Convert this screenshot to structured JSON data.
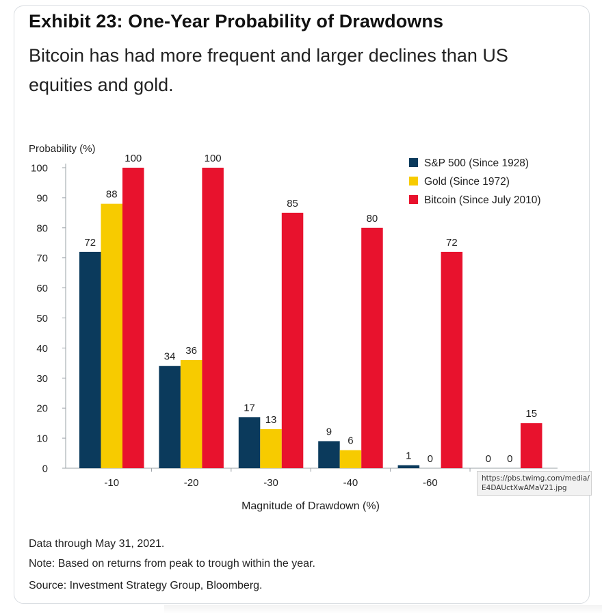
{
  "header": {
    "title": "Exhibit 23: One-Year Probability of Drawdowns",
    "subtitle": "Bitcoin has had more frequent and larger declines than US equities and gold."
  },
  "chart_data": {
    "type": "bar",
    "ylabel": "Probability (%)",
    "xlabel": "Magnitude of Drawdown (%)",
    "ylim": [
      0,
      100
    ],
    "yticks": [
      0,
      10,
      20,
      30,
      40,
      50,
      60,
      70,
      80,
      90,
      100
    ],
    "categories": [
      "-10",
      "-20",
      "-30",
      "-40",
      "-60",
      ""
    ],
    "series": [
      {
        "name": "S&P 500 (Since 1928)",
        "color": "#0b3a5c",
        "values": [
          72,
          34,
          17,
          9,
          1,
          0
        ]
      },
      {
        "name": "Gold (Since 1972)",
        "color": "#f7cb00",
        "values": [
          88,
          36,
          13,
          6,
          0,
          0
        ]
      },
      {
        "name": "Bitcoin (Since July 2010)",
        "color": "#e8122d",
        "values": [
          100,
          100,
          85,
          80,
          72,
          15
        ]
      }
    ],
    "legend": "top-right",
    "grid": false
  },
  "footer": {
    "data_through": "Data through May 31, 2021.",
    "note": "Note: Based on returns from peak to trough within the year.",
    "source": "Source: Investment Strategy Group, Bloomberg."
  },
  "tooltip": {
    "line1": "https://pbs.twimg.com/media/",
    "line2": "E4DAUctXwAMaV21.jpg"
  }
}
